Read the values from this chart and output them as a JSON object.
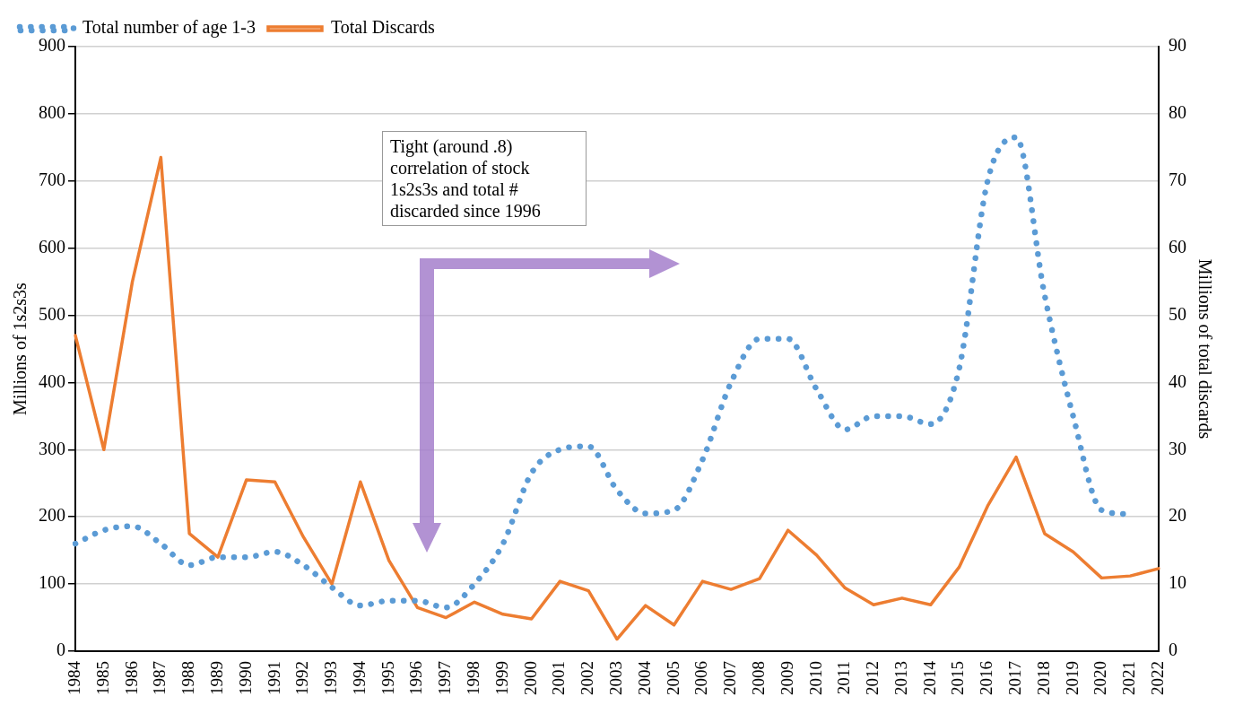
{
  "chart_data": {
    "type": "line",
    "categories": [
      "1984",
      "1985",
      "1986",
      "1987",
      "1988",
      "1989",
      "1990",
      "1991",
      "1992",
      "1993",
      "1994",
      "1995",
      "1996",
      "1997",
      "1998",
      "1999",
      "2000",
      "2001",
      "2002",
      "2003",
      "2004",
      "2005",
      "2006",
      "2007",
      "2008",
      "2009",
      "2010",
      "2011",
      "2012",
      "2013",
      "2014",
      "2015",
      "2016",
      "2017",
      "2018",
      "2019",
      "2020",
      "2021",
      "2022"
    ],
    "series": [
      {
        "name": "Total number of age 1-3",
        "color": "#5b9bd5",
        "line_style": "dotted",
        "values": [
          160,
          180,
          186,
          160,
          128,
          140,
          140,
          148,
          128,
          95,
          68,
          75,
          75,
          65,
          100,
          160,
          265,
          300,
          305,
          240,
          205,
          210,
          285,
          400,
          465,
          465,
          390,
          330,
          350,
          350,
          338,
          420,
          700,
          765,
          530,
          350,
          210,
          204,
          null
        ]
      },
      {
        "name": "Total Discards",
        "color": "#ed7d31",
        "line_style": "solid",
        "axis": "y2",
        "values": [
          47,
          30,
          55,
          73.5,
          17.5,
          14,
          25.5,
          25.2,
          17,
          10,
          25.2,
          13.5,
          6.5,
          5,
          7.3,
          5.5,
          4.8,
          10.4,
          9,
          1.8,
          6.8,
          3.9,
          10.4,
          9.2,
          10.8,
          18,
          14.3,
          9.4,
          6.9,
          7.9,
          6.9,
          12.5,
          21.6,
          28.9,
          17.5,
          14.8,
          10.9,
          11.2,
          12.3
        ]
      }
    ],
    "ylabel": "Millions of 1s2s3s",
    "y2label": "Millions of total discards",
    "ylim": [
      0,
      900
    ],
    "yticks": [
      0,
      100,
      200,
      300,
      400,
      500,
      600,
      700,
      800,
      900
    ],
    "y2lim": [
      0,
      90
    ],
    "y2ticks": [
      0,
      10,
      20,
      30,
      40,
      50,
      60,
      70,
      80,
      90
    ],
    "grid": "y",
    "legend": "top left",
    "marker": "none",
    "annotations": [
      "Tight (around .8) correlation of stock 1s2s3s and total # discarded since 1996"
    ]
  }
}
